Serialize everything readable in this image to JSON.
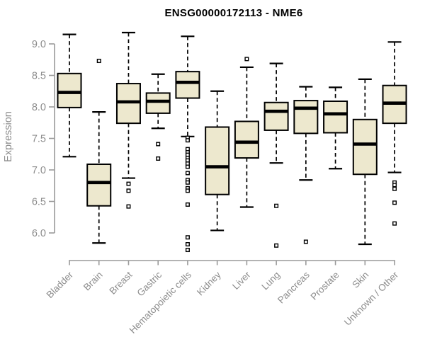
{
  "title": "ENSG00000172113 - NME6",
  "chart_data": {
    "type": "boxplot",
    "title": "ENSG00000172113 - NME6",
    "xlabel": "",
    "ylabel": "Expression",
    "ylim": [
      5.6,
      9.3
    ],
    "yticks": [
      "6.0",
      "6.5",
      "7.0",
      "7.5",
      "8.0",
      "8.5",
      "9.0"
    ],
    "grid": false,
    "legend": "none",
    "categories": [
      "Bladder",
      "Brain",
      "Breast",
      "Gastric",
      "Hematopoietic cells",
      "Kidney",
      "Liver",
      "Lung",
      "Pancreas",
      "Prostate",
      "Skin",
      "Unknown / Other"
    ],
    "series": [
      {
        "name": "Bladder",
        "whisker_low": 7.21,
        "q1": 7.99,
        "median": 8.23,
        "q3": 8.53,
        "whisker_high": 9.15,
        "outliers": []
      },
      {
        "name": "Brain",
        "whisker_low": 5.84,
        "q1": 6.43,
        "median": 6.8,
        "q3": 7.09,
        "whisker_high": 7.92,
        "outliers": [
          8.73
        ]
      },
      {
        "name": "Breast",
        "whisker_low": 6.87,
        "q1": 7.74,
        "median": 8.08,
        "q3": 8.37,
        "whisker_high": 9.18,
        "outliers": [
          6.78,
          6.67,
          6.42
        ]
      },
      {
        "name": "Gastric",
        "whisker_low": 7.66,
        "q1": 7.9,
        "median": 8.09,
        "q3": 8.22,
        "whisker_high": 8.52,
        "outliers": [
          7.41,
          7.18
        ]
      },
      {
        "name": "Hematopoietic cells",
        "whisker_low": 7.53,
        "q1": 8.14,
        "median": 8.39,
        "q3": 8.56,
        "whisker_high": 9.12,
        "outliers": [
          7.51,
          7.47,
          7.33,
          7.28,
          7.24,
          7.19,
          7.15,
          7.1,
          7.05,
          6.95,
          6.84,
          6.8,
          6.71,
          6.67,
          6.45,
          5.93,
          5.82,
          5.73
        ]
      },
      {
        "name": "Kidney",
        "whisker_low": 6.04,
        "q1": 6.61,
        "median": 7.05,
        "q3": 7.68,
        "whisker_high": 8.25,
        "outliers": []
      },
      {
        "name": "Liver",
        "whisker_low": 6.41,
        "q1": 7.19,
        "median": 7.44,
        "q3": 7.77,
        "whisker_high": 8.63,
        "outliers": [
          8.76
        ]
      },
      {
        "name": "Lung",
        "whisker_low": 7.11,
        "q1": 7.63,
        "median": 7.93,
        "q3": 8.07,
        "whisker_high": 8.69,
        "outliers": [
          6.43,
          5.8
        ]
      },
      {
        "name": "Pancreas",
        "whisker_low": 6.84,
        "q1": 7.58,
        "median": 7.98,
        "q3": 8.1,
        "whisker_high": 8.32,
        "outliers": [
          5.86
        ]
      },
      {
        "name": "Prostate",
        "whisker_low": 7.02,
        "q1": 7.59,
        "median": 7.89,
        "q3": 8.09,
        "whisker_high": 8.31,
        "outliers": []
      },
      {
        "name": "Skin",
        "whisker_low": 5.82,
        "q1": 6.93,
        "median": 7.41,
        "q3": 7.8,
        "whisker_high": 8.44,
        "outliers": []
      },
      {
        "name": "Unknown / Other",
        "whisker_low": 6.96,
        "q1": 7.74,
        "median": 8.06,
        "q3": 8.34,
        "whisker_high": 9.03,
        "outliers": [
          6.8,
          6.76,
          6.7,
          6.48,
          6.15
        ]
      }
    ]
  },
  "colors": {
    "background": "#ffffff",
    "box_fill": "#ede8ce",
    "box_stroke": "#000000",
    "median": "#000000",
    "whisker": "#000000",
    "outlier_stroke": "#000000",
    "outlier_fill": "#ffffff",
    "axis_line": "#9a9a9a",
    "tick_label": "#8c8c8c",
    "title": "#000000"
  }
}
